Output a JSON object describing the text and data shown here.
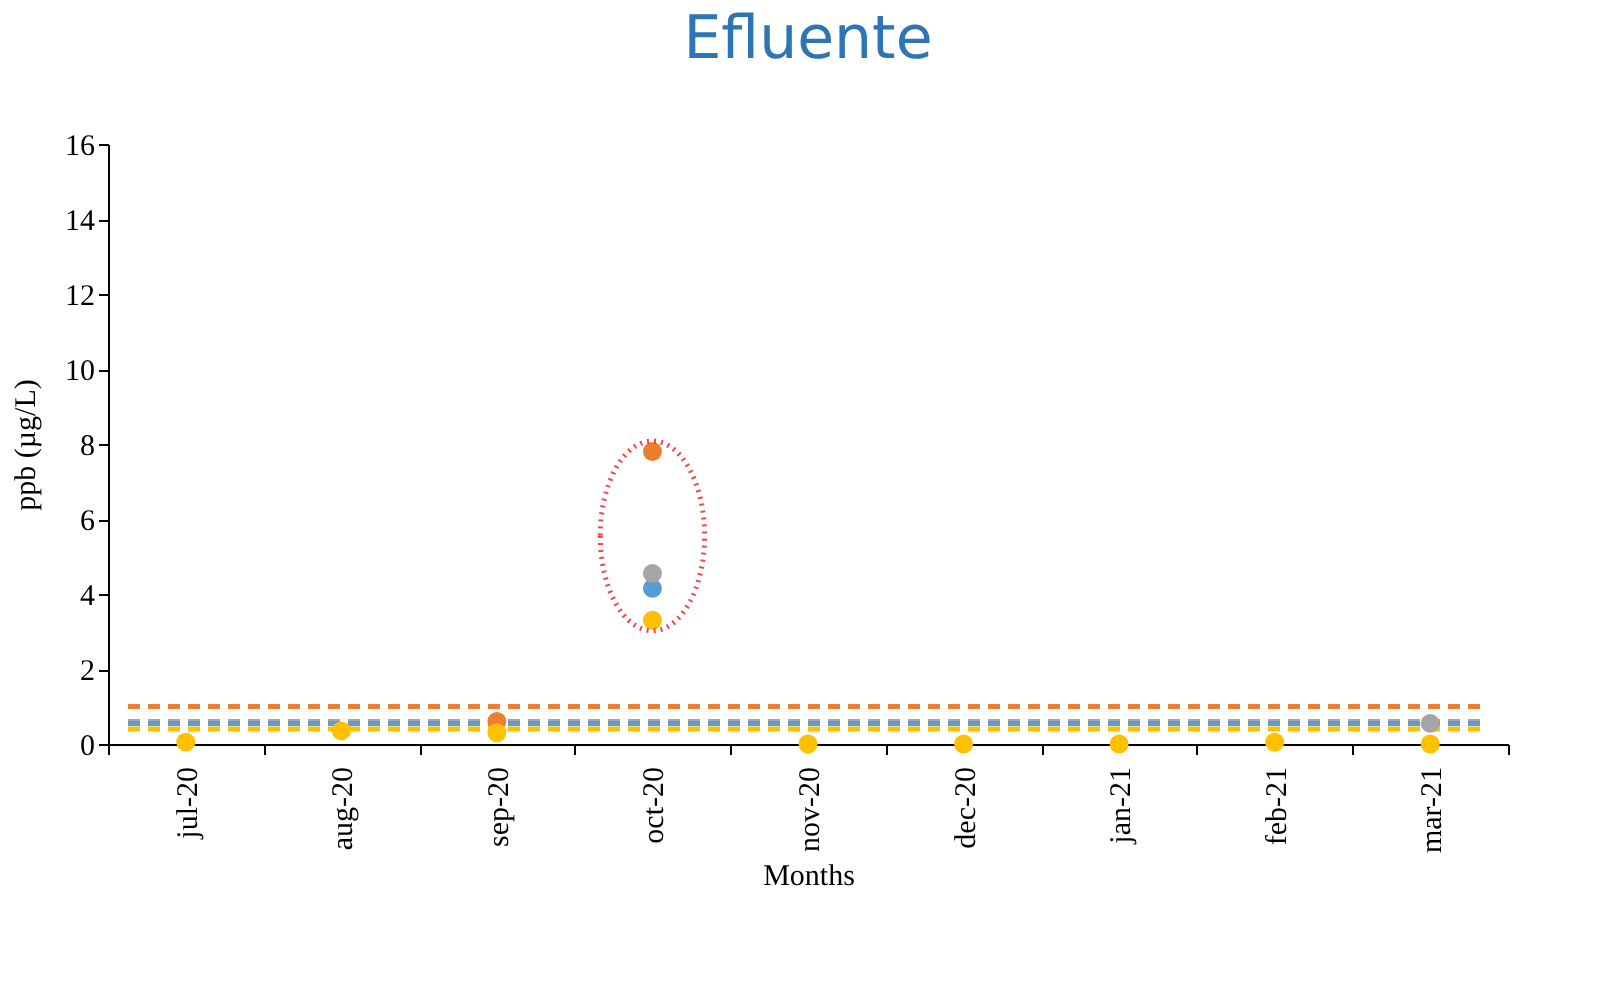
{
  "chart_data": {
    "type": "scatter",
    "title": "Efluente",
    "xlabel": "Months",
    "ylabel": "ppb (µg/L)",
    "categories": [
      "jul-20",
      "aug-20",
      "sep-20",
      "oct-20",
      "nov-20",
      "dec-20",
      "jan-21",
      "feb-21",
      "mar-21"
    ],
    "series": [
      {
        "color": "#ed7d31",
        "values": [
          null,
          null,
          0.6,
          7.8,
          null,
          null,
          null,
          null,
          null
        ]
      },
      {
        "color": "#5b9bd5",
        "values": [
          null,
          null,
          null,
          4.15,
          null,
          null,
          null,
          null,
          null
        ]
      },
      {
        "color": "#a5a5a5",
        "values": [
          null,
          null,
          null,
          4.55,
          null,
          null,
          null,
          null,
          0.55
        ]
      },
      {
        "color": "#ffc000",
        "values": [
          0.05,
          0.35,
          0.3,
          3.3,
          0,
          0,
          0,
          0.05,
          0
        ]
      }
    ],
    "ref_lines": [
      {
        "axis": "y",
        "value": 1.0,
        "color": "#ed7d31",
        "line_style": "dashed"
      },
      {
        "axis": "y",
        "value": 0.6,
        "color": "#a5a5a5",
        "line_style": "dashed"
      },
      {
        "axis": "y",
        "value": 0.55,
        "color": "#5b9bd5",
        "line_style": "dashed"
      },
      {
        "axis": "y",
        "value": 0.4,
        "color": "#ffc000",
        "line_style": "dashed"
      }
    ],
    "ylim": [
      0,
      16
    ],
    "yticks": [
      0,
      2,
      4,
      6,
      8,
      10,
      12,
      14,
      16
    ],
    "marker": "circle",
    "grid": false
  }
}
